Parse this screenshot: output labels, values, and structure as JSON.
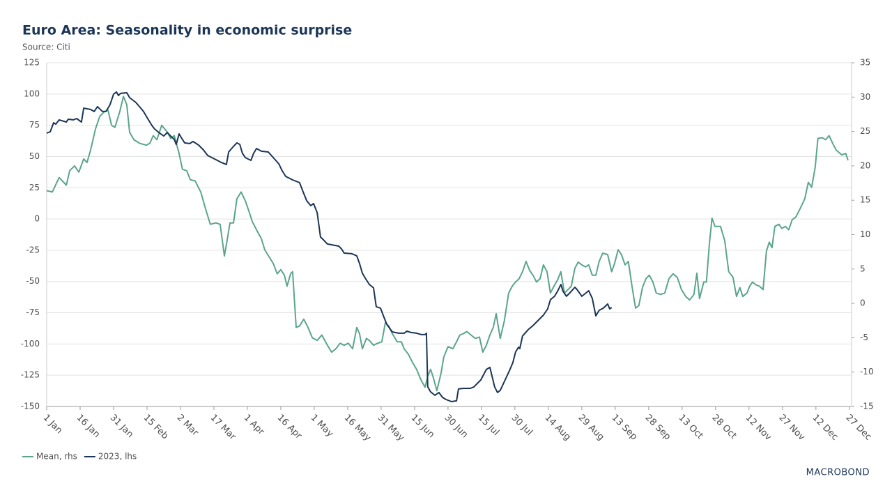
{
  "title": "Euro Area: Seasonality in economic surprise",
  "subtitle": "Source: Citi",
  "brand": "MACROBOND",
  "chart_data": {
    "type": "line",
    "xlim": [
      0,
      361
    ],
    "xticks": [
      {
        "value": 0,
        "label": "1 Jan"
      },
      {
        "value": 15,
        "label": "16 Jan"
      },
      {
        "value": 30,
        "label": "31 Jan"
      },
      {
        "value": 45,
        "label": "15 Feb"
      },
      {
        "value": 60,
        "label": "2 Mar"
      },
      {
        "value": 75,
        "label": "17 Mar"
      },
      {
        "value": 90,
        "label": "1 Apr"
      },
      {
        "value": 105,
        "label": "16 Apr"
      },
      {
        "value": 120,
        "label": "1 May"
      },
      {
        "value": 135,
        "label": "16 May"
      },
      {
        "value": 150,
        "label": "31 May"
      },
      {
        "value": 165,
        "label": "15 Jun"
      },
      {
        "value": 180,
        "label": "30 Jun"
      },
      {
        "value": 195,
        "label": "15 Jul"
      },
      {
        "value": 210,
        "label": "30 Jul"
      },
      {
        "value": 225,
        "label": "14 Aug"
      },
      {
        "value": 240,
        "label": "29 Aug"
      },
      {
        "value": 255,
        "label": "13 Sep"
      },
      {
        "value": 270,
        "label": "28 Sep"
      },
      {
        "value": 285,
        "label": "13 Oct"
      },
      {
        "value": 300,
        "label": "28 Oct"
      },
      {
        "value": 315,
        "label": "12 Nov"
      },
      {
        "value": 330,
        "label": "27 Nov"
      },
      {
        "value": 345,
        "label": "12 Dec"
      },
      {
        "value": 360,
        "label": "27 Dec"
      }
    ],
    "ylim": [
      -150,
      125
    ],
    "yticks": [
      -150,
      -125,
      -100,
      -75,
      -50,
      -25,
      0,
      25,
      50,
      75,
      100,
      125
    ],
    "y2lim": [
      -15,
      35
    ],
    "y2ticks": [
      -15,
      -10,
      -5,
      0,
      5,
      10,
      15,
      20,
      25,
      30,
      35
    ],
    "grid": true,
    "legend": "bottom-left",
    "series": [
      {
        "name": "Mean, rhs",
        "color": "#5aa58a",
        "axis": "y2",
        "x": [
          0,
          2.5,
          5.6,
          8.8,
          10.3,
          12.5,
          14.4,
          16.6,
          18.1,
          19.7,
          21.9,
          23.8,
          25.9,
          27.5,
          29.1,
          30.6,
          32.8,
          34.4,
          35.9,
          37.2,
          39.1,
          41.6,
          44.7,
          46.3,
          47.8,
          49.4,
          51.6,
          54.1,
          55.6,
          57.2,
          59.4,
          60.9,
          62.8,
          64.4,
          66.6,
          69.1,
          71.3,
          73.4,
          75.9,
          77.8,
          79.7,
          80.9,
          82.2,
          83.8,
          85.3,
          87.2,
          89.1,
          90.6,
          92.2,
          94.1,
          96.3,
          97.8,
          99.7,
          101.6,
          103.4,
          105.0,
          106.6,
          107.8,
          109.4,
          110.3,
          111.9,
          113.4,
          115.3,
          117.2,
          119.1,
          121.3,
          123.4,
          125.9,
          127.8,
          129.7,
          131.6,
          133.4,
          135.3,
          137.2,
          139.1,
          140.3,
          141.6,
          143.4,
          144.7,
          146.6,
          148.4,
          150.3,
          151.9,
          153.4,
          155.0,
          157.2,
          159.1,
          160.3,
          162.2,
          164.1,
          165.9,
          167.8,
          169.7,
          170.9,
          172.2,
          173.4,
          175.0,
          176.9,
          178.1,
          180.0,
          182.2,
          183.8,
          185.3,
          186.9,
          188.4,
          190.3,
          192.2,
          194.1,
          195.6,
          197.2,
          198.8,
          200.3,
          201.6,
          203.4,
          205.3,
          207.2,
          208.8,
          210.3,
          211.9,
          213.4,
          215.0,
          216.6,
          218.1,
          219.7,
          221.3,
          222.8,
          224.4,
          225.9,
          227.5,
          229.1,
          230.6,
          232.2,
          233.8,
          235.3,
          236.9,
          238.4,
          240.0,
          241.6,
          243.1,
          244.7,
          246.3,
          247.8,
          249.4,
          251.6,
          253.4,
          254.7,
          256.3,
          257.8,
          259.4,
          260.9,
          262.5,
          264.1,
          265.6,
          267.2,
          268.8,
          270.3,
          271.9,
          273.4,
          275.3,
          277.2,
          279.1,
          280.9,
          282.8,
          284.7,
          286.6,
          288.4,
          290.3,
          291.6,
          292.8,
          294.7,
          295.9,
          297.2,
          298.4,
          299.7,
          302.2,
          304.1,
          305.9,
          307.8,
          309.4,
          310.9,
          312.2,
          314.1,
          315.3,
          316.6,
          318.1,
          319.7,
          321.3,
          322.8,
          324.1,
          325.3,
          326.6,
          328.4,
          329.7,
          331.3,
          332.8,
          334.4,
          335.9,
          337.8,
          340.0,
          341.6,
          343.1,
          344.7,
          345.9,
          347.8,
          349.4,
          350.9,
          352.5,
          354.1,
          356.6,
          358.4,
          359.4
        ],
        "values": [
          16.4,
          16.2,
          18.3,
          17.2,
          19.3,
          20.0,
          19.1,
          21.0,
          20.5,
          22.3,
          25.4,
          27.2,
          27.9,
          28.1,
          25.9,
          25.6,
          27.9,
          30.1,
          28.9,
          24.9,
          23.8,
          23.3,
          23.0,
          23.3,
          24.4,
          23.8,
          25.9,
          24.9,
          24.0,
          24.4,
          21.8,
          19.5,
          19.3,
          18.0,
          17.8,
          16.2,
          13.7,
          11.5,
          11.7,
          11.5,
          6.9,
          9.1,
          11.7,
          11.7,
          15.2,
          16.2,
          14.9,
          13.5,
          11.9,
          10.7,
          9.4,
          7.8,
          6.8,
          5.8,
          4.3,
          4.9,
          4.1,
          2.5,
          4.3,
          4.6,
          -3.5,
          -3.3,
          -2.3,
          -3.5,
          -5.0,
          -5.4,
          -4.6,
          -6.1,
          -7.1,
          -6.6,
          -5.8,
          -6.1,
          -5.8,
          -6.6,
          -3.5,
          -4.4,
          -6.6,
          -5.1,
          -5.4,
          -6.1,
          -5.8,
          -5.6,
          -2.8,
          -3.3,
          -4.4,
          -5.6,
          -5.6,
          -6.6,
          -7.4,
          -8.6,
          -9.6,
          -11.1,
          -12.2,
          -10.6,
          -9.6,
          -10.8,
          -12.7,
          -10.1,
          -7.8,
          -6.3,
          -6.6,
          -5.6,
          -4.6,
          -4.4,
          -4.1,
          -4.6,
          -5.1,
          -4.9,
          -7.1,
          -6.1,
          -4.6,
          -3.5,
          -1.5,
          -5.1,
          -2.5,
          1.5,
          2.5,
          3.1,
          3.6,
          4.6,
          6.1,
          4.8,
          4.1,
          3.1,
          3.6,
          5.6,
          4.6,
          1.5,
          2.5,
          3.4,
          4.6,
          1.5,
          2.0,
          2.5,
          5.1,
          6.0,
          5.6,
          5.3,
          5.6,
          4.1,
          4.1,
          6.1,
          7.3,
          7.1,
          4.6,
          5.8,
          7.8,
          7.1,
          5.6,
          6.1,
          2.5,
          -0.7,
          -0.3,
          2.3,
          3.6,
          4.1,
          3.1,
          1.5,
          1.3,
          1.5,
          3.6,
          4.3,
          3.8,
          2.0,
          1.0,
          0.5,
          1.3,
          4.4,
          0.7,
          3.1,
          3.1,
          8.6,
          12.4,
          11.2,
          11.2,
          9.1,
          4.6,
          3.8,
          1.0,
          2.3,
          1.0,
          1.5,
          2.5,
          3.1,
          2.7,
          2.5,
          2.0,
          7.6,
          8.9,
          8.1,
          11.2,
          11.5,
          10.9,
          11.2,
          10.7,
          12.2,
          12.5,
          13.7,
          15.2,
          17.6,
          16.9,
          19.8,
          24.0,
          24.1,
          23.8,
          24.4,
          23.3,
          22.3,
          21.6,
          21.8,
          20.8
        ]
      },
      {
        "name": "2023, lhs",
        "color": "#1b3556",
        "axis": "y",
        "x": [
          0,
          1.6,
          3.1,
          4.1,
          5.6,
          8.8,
          9.7,
          11.9,
          13.4,
          15.6,
          16.6,
          19.7,
          21.3,
          22.8,
          25.0,
          26.6,
          28.4,
          30.0,
          31.3,
          32.2,
          33.1,
          35.9,
          37.2,
          40.0,
          41.6,
          43.4,
          45.3,
          47.2,
          48.4,
          50.3,
          52.5,
          54.1,
          55.6,
          57.2,
          58.1,
          59.4,
          60.3,
          61.9,
          64.1,
          65.6,
          68.1,
          70.3,
          72.2,
          75.3,
          78.4,
          80.6,
          81.6,
          83.8,
          85.3,
          86.6,
          87.8,
          89.1,
          91.6,
          92.8,
          94.1,
          96.3,
          99.4,
          101.9,
          104.1,
          105.6,
          107.2,
          110.3,
          113.4,
          115.0,
          116.6,
          118.4,
          119.7,
          121.3,
          122.8,
          124.4,
          125.9,
          129.1,
          131.0,
          132.2,
          133.4,
          136.9,
          139.1,
          140.3,
          141.6,
          143.1,
          144.7,
          146.6,
          147.8,
          149.7,
          150.9,
          152.5,
          154.1,
          155.0,
          157.8,
          160.3,
          161.6,
          163.4,
          165.9,
          168.1,
          169.7,
          170.3,
          170.9,
          172.2,
          174.1,
          175.9,
          177.5,
          179.1,
          181.6,
          183.8,
          184.7,
          186.9,
          190.0,
          191.6,
          194.7,
          197.2,
          198.8,
          200.9,
          202.2,
          203.4,
          205.6,
          207.8,
          209.1,
          210.3,
          211.6,
          212.2,
          213.4,
          215.9,
          218.1,
          220.3,
          222.8,
          224.7,
          225.9,
          227.8,
          229.1,
          230.6,
          231.6,
          233.1,
          234.7,
          236.9,
          237.8,
          240.0,
          241.6,
          243.1,
          244.7,
          246.3,
          247.8,
          249.7,
          251.6,
          252.5,
          253.4
        ],
        "values": [
          68.7,
          69.8,
          77.0,
          75.9,
          79.3,
          77.6,
          79.8,
          79.3,
          80.4,
          77.6,
          88.7,
          87.6,
          86.0,
          89.9,
          86.0,
          86.0,
          91.5,
          99.9,
          101.6,
          98.8,
          100.5,
          101.0,
          97.1,
          93.2,
          89.9,
          86.0,
          80.4,
          74.8,
          72.0,
          69.2,
          66.4,
          69.2,
          66.4,
          63.7,
          59.7,
          68.1,
          65.3,
          60.9,
          60.3,
          62.0,
          59.2,
          55.3,
          50.8,
          48.0,
          45.2,
          43.6,
          53.6,
          58.1,
          60.9,
          59.7,
          52.5,
          49.1,
          46.9,
          52.5,
          56.4,
          54.2,
          53.6,
          48.6,
          44.1,
          38.6,
          34.1,
          31.3,
          29.1,
          21.8,
          14.6,
          10.7,
          12.3,
          5.1,
          -14.4,
          -17.2,
          -20.0,
          -21.1,
          -21.7,
          -23.9,
          -27.3,
          -27.8,
          -29.5,
          -35.6,
          -43.4,
          -47.9,
          -52.4,
          -55.1,
          -70.2,
          -71.3,
          -76.9,
          -84.1,
          -88.1,
          -90.3,
          -91.4,
          -91.4,
          -89.7,
          -90.8,
          -91.4,
          -92.5,
          -92.5,
          -91.4,
          -134.3,
          -138.3,
          -141.0,
          -138.8,
          -142.7,
          -144.4,
          -146.1,
          -145.5,
          -136.0,
          -135.5,
          -135.5,
          -134.3,
          -128.8,
          -120.4,
          -118.7,
          -134.3,
          -138.8,
          -137.1,
          -128.8,
          -120.4,
          -114.8,
          -106.5,
          -102.6,
          -103.7,
          -93.6,
          -88.6,
          -85.3,
          -81.4,
          -76.9,
          -71.9,
          -64.6,
          -61.8,
          -57.9,
          -52.4,
          -57.9,
          -61.8,
          -59.0,
          -54.6,
          -56.3,
          -61.8,
          -59.6,
          -57.4,
          -63.5,
          -77.5,
          -73.0,
          -71.3,
          -68.0,
          -71.9,
          -70.8
        ]
      }
    ]
  }
}
